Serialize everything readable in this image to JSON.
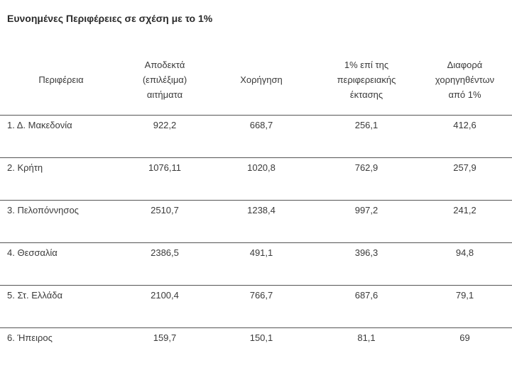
{
  "title": "Ευνοημένες Περιφέρειες σε σχέση με το 1%",
  "table": {
    "headers": [
      {
        "lines": [
          "Περιφέρεια"
        ]
      },
      {
        "lines": [
          "Αποδεκτά",
          "(επιλέξιμα)",
          "αιτήματα"
        ]
      },
      {
        "lines": [
          "Χορήγηση"
        ]
      },
      {
        "lines": [
          "1% επί της",
          "περιφερειακής",
          "έκτασης"
        ]
      },
      {
        "lines": [
          "Διαφορά",
          "χορηγηθέντων",
          "από 1%"
        ]
      }
    ],
    "rows": [
      {
        "region": "1. Δ. Μακεδονία",
        "accepted": "922,2",
        "granted": "668,7",
        "one_percent": "256,1",
        "difference": "412,6"
      },
      {
        "region": "2. Κρήτη",
        "accepted": "1076,11",
        "granted": "1020,8",
        "one_percent": "762,9",
        "difference": "257,9"
      },
      {
        "region": "3. Πελοπόννησος",
        "accepted": "2510,7",
        "granted": "1238,4",
        "one_percent": "997,2",
        "difference": "241,2"
      },
      {
        "region": "4. Θεσσαλία",
        "accepted": "2386,5",
        "granted": "491,1",
        "one_percent": "396,3",
        "difference": "94,8"
      },
      {
        "region": "5. Στ. Ελλάδα",
        "accepted": "2100,4",
        "granted": "766,7",
        "one_percent": "687,6",
        "difference": "79,1"
      },
      {
        "region": "6. Ήπειρος",
        "accepted": "159,7",
        "granted": "150,1",
        "one_percent": "81,1",
        "difference": "69"
      }
    ]
  }
}
